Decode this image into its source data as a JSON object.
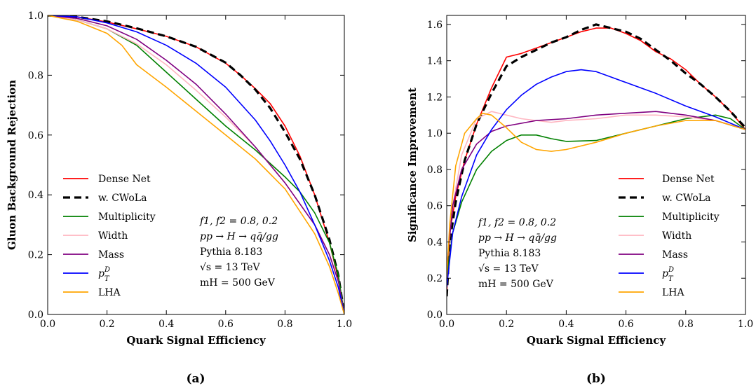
{
  "chart_data": [
    {
      "type": "line",
      "panel_label": "(a)",
      "xlabel": "Quark Signal Efficiency",
      "ylabel": "Gluon Background Rejection",
      "xlim": [
        0,
        1
      ],
      "ylim": [
        0,
        1
      ],
      "xticks": [
        0.0,
        0.2,
        0.4,
        0.6,
        0.8,
        1.0
      ],
      "yticks": [
        0.0,
        0.2,
        0.4,
        0.6,
        0.8,
        1.0
      ],
      "xtick_labels": [
        "0.0",
        "0.2",
        "0.4",
        "0.6",
        "0.8",
        "1.0"
      ],
      "ytick_labels": [
        "0.0",
        "0.2",
        "0.4",
        "0.6",
        "0.8",
        "1.0"
      ],
      "grid": false,
      "legend_position": "lower-left",
      "annotations": [
        "f1, f2 = 0.8, 0.2",
        "pp → H → qq̄/gg",
        "Pythia 8.183",
        "√s = 13 TeV",
        "mH = 500 GeV"
      ],
      "series": [
        {
          "name": "Dense Net",
          "color": "#ff0000",
          "style": "solid",
          "x": [
            0,
            0.1,
            0.2,
            0.3,
            0.4,
            0.5,
            0.6,
            0.65,
            0.7,
            0.75,
            0.8,
            0.85,
            0.9,
            0.95,
            0.98,
            1.0
          ],
          "y": [
            1.0,
            0.995,
            0.978,
            0.955,
            0.93,
            0.895,
            0.84,
            0.8,
            0.755,
            0.705,
            0.63,
            0.53,
            0.4,
            0.24,
            0.12,
            0.0
          ]
        },
        {
          "name": "w. CWoLa",
          "color": "#000000",
          "style": "dashed",
          "x": [
            0,
            0.1,
            0.2,
            0.3,
            0.4,
            0.5,
            0.6,
            0.65,
            0.7,
            0.75,
            0.8,
            0.85,
            0.9,
            0.95,
            0.98,
            1.0
          ],
          "y": [
            1.0,
            0.995,
            0.98,
            0.957,
            0.93,
            0.895,
            0.842,
            0.8,
            0.752,
            0.69,
            0.61,
            0.52,
            0.4,
            0.25,
            0.13,
            0.0
          ]
        },
        {
          "name": "Multiplicity",
          "color": "#008000",
          "style": "solid",
          "x": [
            0,
            0.1,
            0.2,
            0.3,
            0.4,
            0.5,
            0.6,
            0.7,
            0.8,
            0.85,
            0.9,
            0.95,
            0.98,
            1.0
          ],
          "y": [
            1.0,
            0.985,
            0.955,
            0.9,
            0.81,
            0.72,
            0.63,
            0.55,
            0.46,
            0.41,
            0.34,
            0.24,
            0.13,
            0.0
          ]
        },
        {
          "name": "Width",
          "color": "#ffb6c1",
          "style": "solid",
          "x": [
            0,
            0.1,
            0.2,
            0.3,
            0.4,
            0.5,
            0.6,
            0.7,
            0.8,
            0.9,
            0.95,
            0.98,
            1.0
          ],
          "y": [
            1.0,
            0.985,
            0.955,
            0.905,
            0.835,
            0.75,
            0.66,
            0.56,
            0.44,
            0.3,
            0.2,
            0.11,
            0.0
          ]
        },
        {
          "name": "Mass",
          "color": "#800080",
          "style": "solid",
          "x": [
            0,
            0.1,
            0.2,
            0.3,
            0.4,
            0.5,
            0.6,
            0.7,
            0.8,
            0.9,
            0.95,
            0.98,
            1.0
          ],
          "y": [
            1.0,
            0.99,
            0.965,
            0.92,
            0.85,
            0.77,
            0.67,
            0.56,
            0.44,
            0.3,
            0.2,
            0.11,
            0.0
          ]
        },
        {
          "name": "p_T^D",
          "color": "#0000ff",
          "style": "solid",
          "x": [
            0,
            0.1,
            0.2,
            0.3,
            0.4,
            0.5,
            0.6,
            0.7,
            0.75,
            0.8,
            0.85,
            0.9,
            0.95,
            0.98,
            1.0
          ],
          "y": [
            1.0,
            0.995,
            0.975,
            0.945,
            0.9,
            0.84,
            0.76,
            0.65,
            0.58,
            0.5,
            0.41,
            0.3,
            0.18,
            0.09,
            0.0
          ]
        },
        {
          "name": "LHA",
          "color": "#ffa500",
          "style": "solid",
          "x": [
            0,
            0.1,
            0.2,
            0.25,
            0.3,
            0.4,
            0.5,
            0.6,
            0.7,
            0.8,
            0.9,
            0.95,
            0.98,
            1.0
          ],
          "y": [
            1.0,
            0.98,
            0.94,
            0.9,
            0.835,
            0.76,
            0.68,
            0.6,
            0.52,
            0.42,
            0.27,
            0.16,
            0.07,
            0.0
          ]
        }
      ]
    },
    {
      "type": "line",
      "panel_label": "(b)",
      "xlabel": "Quark Signal Efficiency",
      "ylabel": "Significance Improvement",
      "xlim": [
        0,
        1
      ],
      "ylim": [
        0,
        1.65
      ],
      "xticks": [
        0.0,
        0.2,
        0.4,
        0.6,
        0.8,
        1.0
      ],
      "yticks": [
        0.0,
        0.2,
        0.4,
        0.6,
        0.8,
        1.0,
        1.2,
        1.4,
        1.6
      ],
      "xtick_labels": [
        "0.0",
        "0.2",
        "0.4",
        "0.6",
        "0.8",
        "1.0"
      ],
      "ytick_labels": [
        "0.0",
        "0.2",
        "0.4",
        "0.6",
        "0.8",
        "1.0",
        "1.2",
        "1.4",
        "1.6"
      ],
      "grid": false,
      "legend_position": "lower-right",
      "annotations": [
        "f1, f2 = 0.8, 0.2",
        "pp → H → qq̄/gg",
        "Pythia 8.183",
        "√s = 13 TeV",
        "mH = 500 GeV"
      ],
      "series": [
        {
          "name": "Dense Net",
          "color": "#ff0000",
          "style": "solid",
          "x": [
            0,
            0.01,
            0.03,
            0.06,
            0.1,
            0.15,
            0.2,
            0.25,
            0.3,
            0.35,
            0.4,
            0.45,
            0.5,
            0.55,
            0.6,
            0.65,
            0.7,
            0.75,
            0.8,
            0.85,
            0.9,
            0.95,
            1.0
          ],
          "y": [
            0.12,
            0.45,
            0.65,
            0.85,
            1.05,
            1.25,
            1.42,
            1.44,
            1.47,
            1.5,
            1.53,
            1.56,
            1.58,
            1.58,
            1.55,
            1.51,
            1.45,
            1.41,
            1.35,
            1.27,
            1.2,
            1.12,
            1.02
          ]
        },
        {
          "name": "w. CWoLa",
          "color": "#000000",
          "style": "dashed",
          "x": [
            0,
            0.01,
            0.03,
            0.06,
            0.1,
            0.15,
            0.2,
            0.25,
            0.3,
            0.35,
            0.4,
            0.45,
            0.5,
            0.55,
            0.6,
            0.65,
            0.7,
            0.75,
            0.8,
            0.85,
            0.9,
            0.95,
            1.0
          ],
          "y": [
            0.1,
            0.4,
            0.62,
            0.85,
            1.05,
            1.22,
            1.37,
            1.42,
            1.46,
            1.5,
            1.53,
            1.57,
            1.6,
            1.58,
            1.56,
            1.52,
            1.46,
            1.4,
            1.33,
            1.27,
            1.2,
            1.12,
            1.03
          ]
        },
        {
          "name": "Multiplicity",
          "color": "#008000",
          "style": "solid",
          "x": [
            0,
            0.02,
            0.05,
            0.1,
            0.15,
            0.2,
            0.25,
            0.3,
            0.35,
            0.4,
            0.5,
            0.6,
            0.7,
            0.8,
            0.85,
            0.9,
            0.95,
            1.0
          ],
          "y": [
            0.2,
            0.45,
            0.62,
            0.8,
            0.9,
            0.96,
            0.99,
            0.99,
            0.97,
            0.955,
            0.96,
            1.0,
            1.04,
            1.08,
            1.09,
            1.1,
            1.08,
            1.02
          ]
        },
        {
          "name": "Width",
          "color": "#ffb6c1",
          "style": "solid",
          "x": [
            0,
            0.02,
            0.05,
            0.1,
            0.15,
            0.2,
            0.25,
            0.3,
            0.35,
            0.4,
            0.5,
            0.6,
            0.7,
            0.8,
            0.9,
            1.0
          ],
          "y": [
            0.25,
            0.6,
            0.88,
            1.08,
            1.12,
            1.1,
            1.08,
            1.07,
            1.06,
            1.07,
            1.08,
            1.1,
            1.1,
            1.09,
            1.07,
            1.02
          ]
        },
        {
          "name": "Mass",
          "color": "#800080",
          "style": "solid",
          "x": [
            0,
            0.02,
            0.05,
            0.1,
            0.15,
            0.2,
            0.3,
            0.4,
            0.5,
            0.6,
            0.7,
            0.8,
            0.9,
            1.0
          ],
          "y": [
            0.25,
            0.6,
            0.8,
            0.94,
            1.01,
            1.04,
            1.07,
            1.08,
            1.1,
            1.11,
            1.12,
            1.1,
            1.07,
            1.02
          ]
        },
        {
          "name": "p_T^D",
          "color": "#0000ff",
          "style": "solid",
          "x": [
            0,
            0.02,
            0.05,
            0.1,
            0.15,
            0.2,
            0.25,
            0.3,
            0.35,
            0.4,
            0.45,
            0.5,
            0.55,
            0.6,
            0.7,
            0.8,
            0.9,
            1.0
          ],
          "y": [
            0.15,
            0.45,
            0.65,
            0.88,
            1.02,
            1.13,
            1.21,
            1.27,
            1.31,
            1.34,
            1.35,
            1.34,
            1.31,
            1.28,
            1.22,
            1.15,
            1.09,
            1.02
          ]
        },
        {
          "name": "LHA",
          "color": "#ffa500",
          "style": "solid",
          "x": [
            0,
            0.01,
            0.03,
            0.06,
            0.1,
            0.12,
            0.15,
            0.2,
            0.25,
            0.3,
            0.35,
            0.4,
            0.5,
            0.6,
            0.7,
            0.8,
            0.9,
            1.0
          ],
          "y": [
            0.2,
            0.5,
            0.82,
            1.0,
            1.08,
            1.11,
            1.1,
            1.03,
            0.95,
            0.91,
            0.9,
            0.91,
            0.95,
            1.0,
            1.04,
            1.07,
            1.07,
            1.02
          ]
        }
      ]
    }
  ]
}
